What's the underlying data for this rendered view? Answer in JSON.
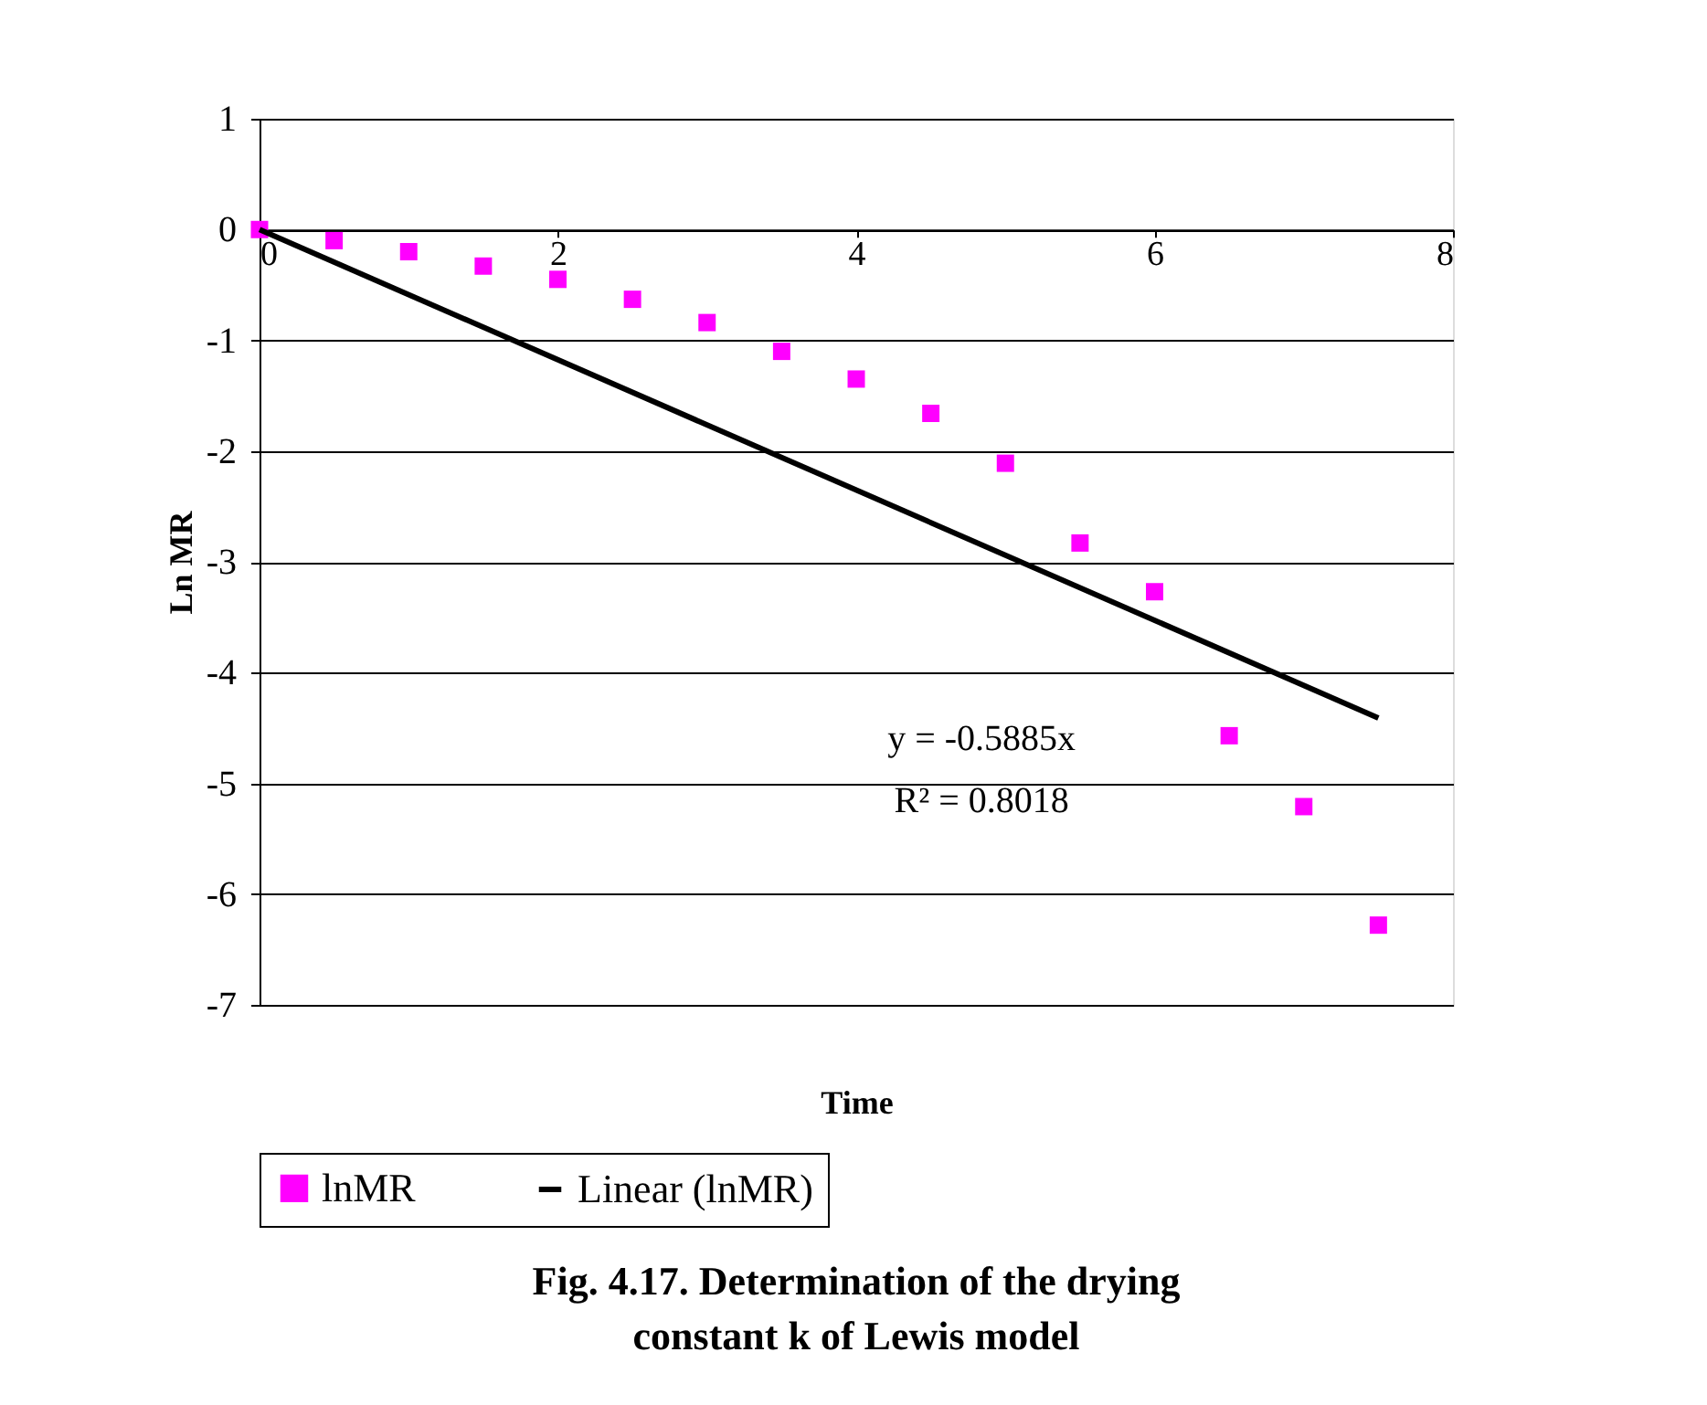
{
  "chart_data": {
    "type": "scatter",
    "title": "Fig. 4.17. Determination of the drying constant k of Lewis model",
    "xlabel": "Time",
    "ylabel": "Ln MR",
    "x": [
      0,
      0.5,
      1,
      1.5,
      2,
      2.5,
      3,
      3.5,
      4,
      4.5,
      5,
      5.5,
      6,
      6.5,
      7,
      7.5
    ],
    "series": [
      {
        "name": "lnMR",
        "color": "#ff00ff",
        "marker": "square",
        "values": [
          0,
          -0.1,
          -0.2,
          -0.33,
          -0.45,
          -0.63,
          -0.84,
          -1.1,
          -1.35,
          -1.66,
          -2.11,
          -2.83,
          -3.27,
          -4.57,
          -5.21,
          -6.28
        ]
      },
      {
        "name": "Linear (lnMR)",
        "type": "line",
        "color": "#000000",
        "line_style": "solid",
        "x": [
          0,
          7.5
        ],
        "values": [
          0,
          -4.41
        ]
      }
    ],
    "xlim": [
      0,
      8
    ],
    "xticks": [
      0,
      2,
      4,
      6,
      8
    ],
    "ylim": [
      -7,
      1
    ],
    "yticks": [
      -7,
      -6,
      -5,
      -4,
      -3,
      -2,
      -1,
      0,
      1
    ],
    "grid": "y",
    "legend": "bottom",
    "annotations": [
      "y = -0.5885x",
      "R² = 0.8018"
    ]
  }
}
